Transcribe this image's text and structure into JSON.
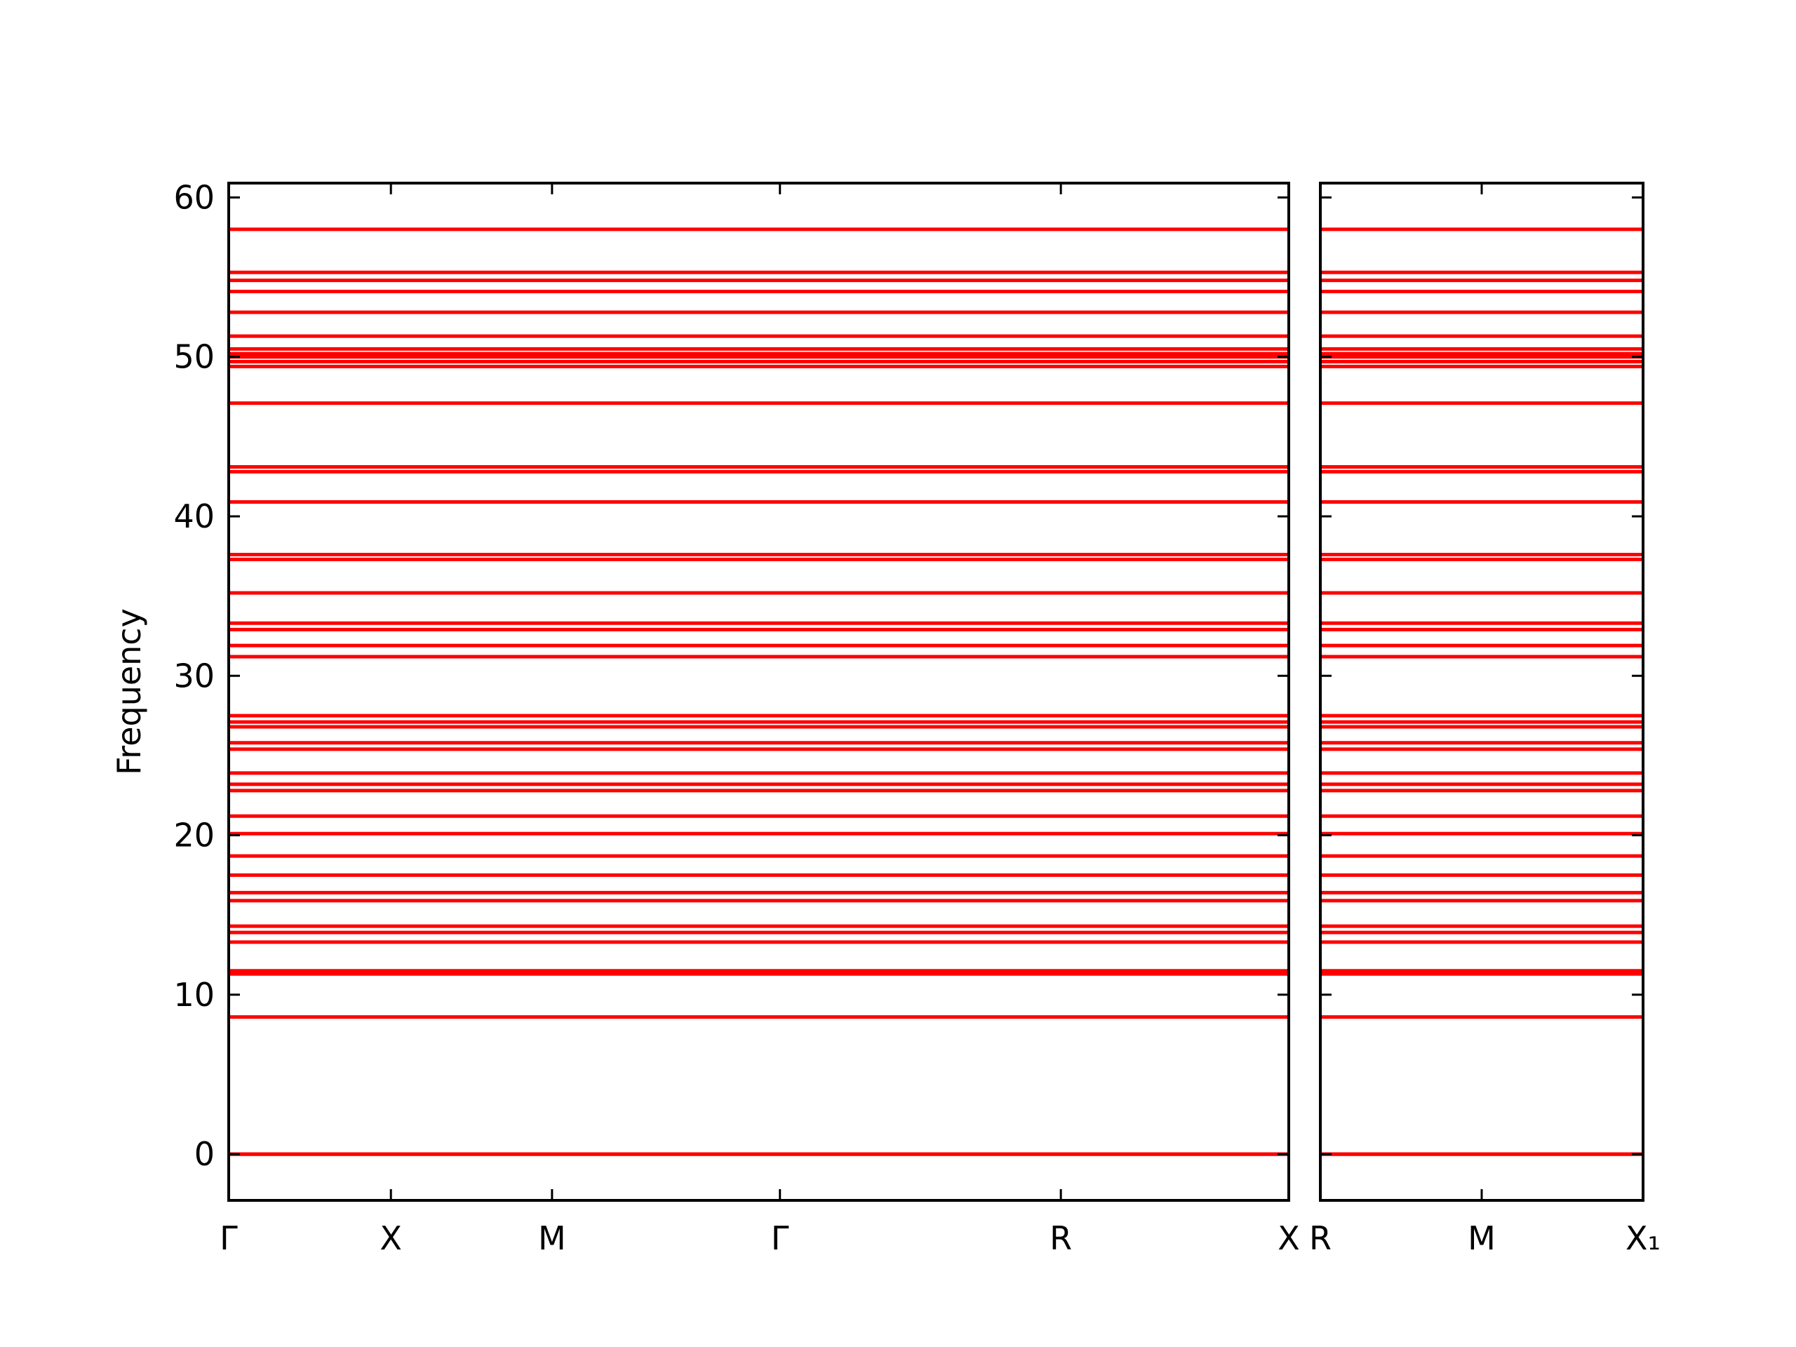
{
  "chart_data": [
    {
      "type": "hline",
      "ylabel": "Frequency",
      "color": "#ff0000",
      "xlim": [
        0,
        1
      ],
      "xticks": [
        {
          "value": 0,
          "label": "Γ"
        },
        {
          "value": 0.153,
          "label": "X"
        },
        {
          "value": 0.305,
          "label": "M"
        },
        {
          "value": 0.52,
          "label": "Γ"
        },
        {
          "value": 0.785,
          "label": "R"
        },
        {
          "value": 1,
          "label": "X"
        }
      ],
      "ylim": [
        -2.9,
        60.9
      ],
      "yticks": [
        0,
        10,
        20,
        30,
        40,
        50,
        60
      ],
      "ytick_labels": true,
      "values": [
        0,
        0,
        0,
        8.6,
        11.3,
        11.5,
        13.3,
        13.9,
        14.3,
        15.9,
        16.4,
        17.5,
        18.7,
        20.1,
        21.2,
        22.8,
        23.2,
        23.9,
        25.4,
        25.8,
        26.8,
        27.1,
        27.5,
        31.2,
        31.9,
        32.9,
        33.3,
        35.2,
        37.3,
        37.6,
        40.9,
        42.8,
        43.1,
        47.1,
        49.4,
        49.7,
        50.0,
        50.2,
        50.5,
        51.3,
        52.8,
        54.1,
        54.8,
        55.3,
        58.0
      ]
    },
    {
      "type": "hline",
      "color": "#ff0000",
      "xlim": [
        1,
        1.304
      ],
      "xticks": [
        {
          "value": 1,
          "label": "R"
        },
        {
          "value": 1.152,
          "label": "M"
        },
        {
          "value": 1.304,
          "label": "X₁"
        }
      ],
      "ylim": [
        -2.9,
        60.9
      ],
      "yticks": [
        0,
        10,
        20,
        30,
        40,
        50,
        60
      ],
      "ytick_labels": false,
      "values": [
        0,
        0,
        0,
        8.6,
        11.3,
        11.5,
        13.3,
        13.9,
        14.3,
        15.9,
        16.4,
        17.5,
        18.7,
        20.1,
        21.2,
        22.8,
        23.2,
        23.9,
        25.4,
        25.8,
        26.8,
        27.1,
        27.5,
        31.2,
        31.9,
        32.9,
        33.3,
        35.2,
        37.3,
        37.6,
        40.9,
        42.8,
        43.1,
        47.1,
        49.4,
        49.7,
        50.0,
        50.2,
        50.5,
        51.3,
        52.8,
        54.1,
        54.8,
        55.3,
        58.0
      ]
    }
  ]
}
